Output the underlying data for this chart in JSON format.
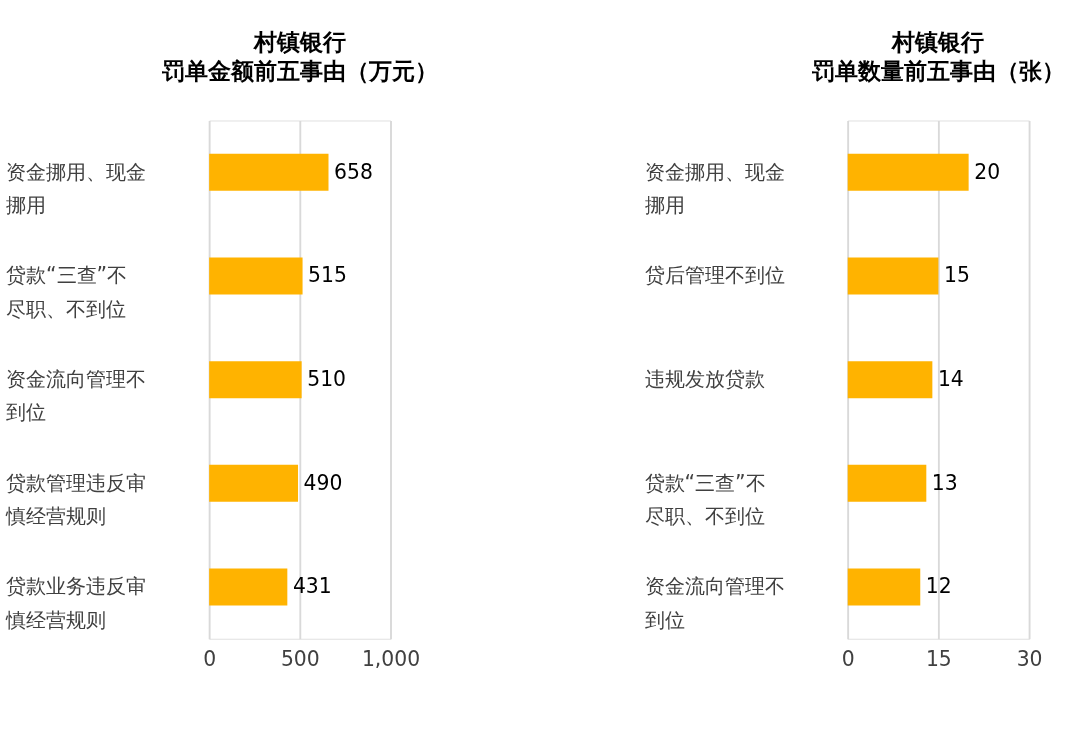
{
  "chart_data": [
    {
      "type": "bar",
      "orientation": "horizontal",
      "title": "村镇银行",
      "subtitle": "罚单金额前五事由（万元）",
      "categories": [
        "资金挪用、现金挪用",
        "贷款“三查”不尽职、不到位",
        "资金流向管理不到位",
        "贷款管理违反审慎经营规则",
        "贷款业务违反审慎经营规则"
      ],
      "values": [
        658,
        515,
        510,
        490,
        431
      ],
      "color": "#ffb300",
      "xlim": [
        0,
        1000
      ],
      "xticks": [
        0,
        500,
        {
          "value": 1000,
          "label": "1,000"
        }
      ],
      "grid": "x",
      "data_labels": true
    },
    {
      "type": "bar",
      "orientation": "horizontal",
      "title": "村镇银行",
      "subtitle": "罚单数量前五事由（张）",
      "categories": [
        "资金挪用、现金挪用",
        "贷后管理不到位",
        "违规发放贷款",
        "贷款“三查”不尽职、不到位",
        "资金流向管理不到位"
      ],
      "values": [
        20,
        15,
        14,
        13,
        12
      ],
      "color": "#ffb300",
      "xlim": [
        0,
        30
      ],
      "xticks": [
        0,
        15,
        30
      ],
      "grid": "x",
      "data_labels": true
    }
  ]
}
